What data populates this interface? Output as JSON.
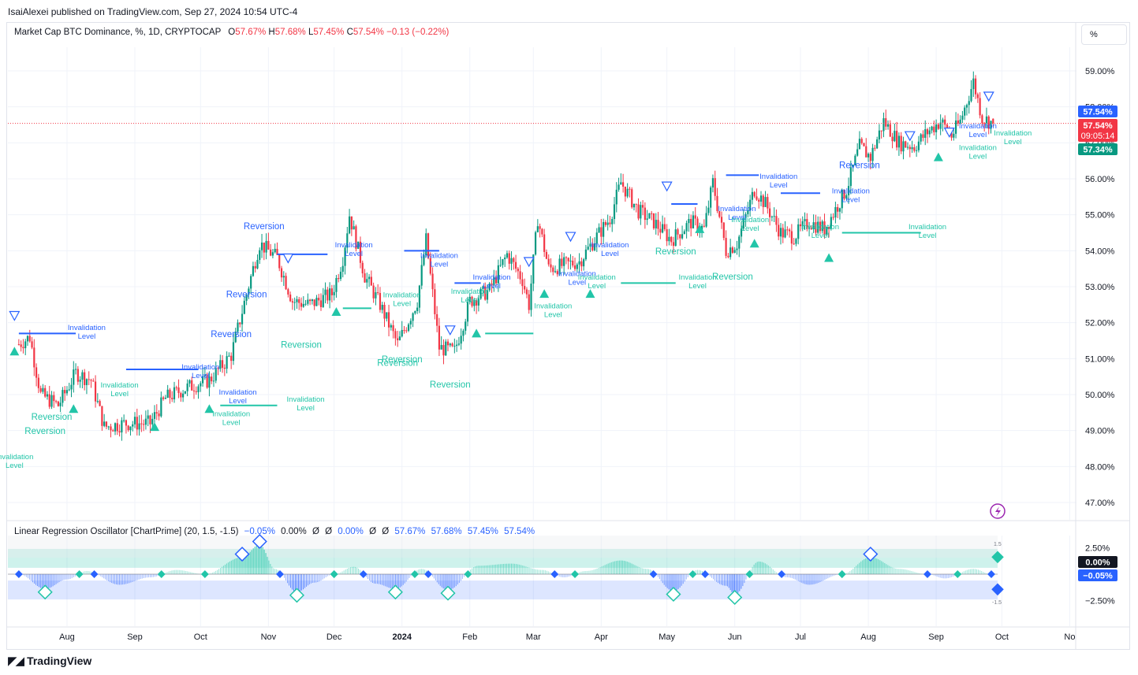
{
  "header": {
    "publisher": "IsaiAlexei published on TradingView.com, Sep 27, 2024 10:54 UTC-4"
  },
  "main_legend": {
    "title": "Market Cap BTC Dominance, %, 1D, CRYPTOCAP",
    "o_label": "O",
    "o_value": "57.67%",
    "h_label": "H",
    "h_value": "57.68%",
    "l_label": "L",
    "l_value": "57.45%",
    "c_label": "C",
    "c_value": "57.54%",
    "change": "−0.13 (−0.22%)"
  },
  "scale_button": "%",
  "oscillator_legend": {
    "title": "Linear Regression Oscillator [ChartPrime] (20, 1.5, -1.5)",
    "v1": "−0.05%",
    "v2": "0.00%",
    "v3": "Ø",
    "v4": "Ø",
    "v5": "0.00%",
    "v6": "Ø",
    "v7": "Ø",
    "v8": "57.67%",
    "v9": "57.68%",
    "v10": "57.45%",
    "v11": "57.54%"
  },
  "price_badges": {
    "current": "57.54%",
    "last": "57.54%",
    "countdown": "09:05:14",
    "lower": "57.34%"
  },
  "osc_badges": {
    "zero": "0.00%",
    "value": "−0.05%",
    "upper_level": "1.5",
    "lower_level": "-1.5"
  },
  "brand": "TradingView",
  "colors": {
    "up": "#089981",
    "down": "#f23645",
    "teal": "#22c5a8",
    "blue": "#2962ff",
    "text": "#131722"
  },
  "chart_data": [
    {
      "type": "candlestick",
      "title": "Market Cap BTC Dominance, %, 1D, CRYPTOCAP",
      "x_ticks": [
        "Aug",
        "Sep",
        "Oct",
        "Nov",
        "Dec",
        "2024",
        "Feb",
        "Mar",
        "Apr",
        "May",
        "Jun",
        "Jul",
        "Aug",
        "Sep",
        "Oct",
        "No"
      ],
      "y_ticks": [
        "59.00%",
        "58.00%",
        "57.00%",
        "56.00%",
        "55.00%",
        "54.00%",
        "53.00%",
        "52.00%",
        "51.00%",
        "50.00%",
        "49.00%",
        "48.00%",
        "47.00%"
      ],
      "ylim": [
        46.6,
        59.6
      ],
      "approx_close_path": [
        {
          "date": "2023-07-10",
          "close": 51.4
        },
        {
          "date": "2023-07-15",
          "close": 51.6
        },
        {
          "date": "2023-07-20",
          "close": 50.0
        },
        {
          "date": "2023-07-28",
          "close": 49.7
        },
        {
          "date": "2023-08-05",
          "close": 50.6
        },
        {
          "date": "2023-08-12",
          "close": 50.4
        },
        {
          "date": "2023-08-18",
          "close": 49.1
        },
        {
          "date": "2023-08-28",
          "close": 49.2
        },
        {
          "date": "2023-09-08",
          "close": 49.2
        },
        {
          "date": "2023-09-15",
          "close": 49.9
        },
        {
          "date": "2023-09-25",
          "close": 50.2
        },
        {
          "date": "2023-10-05",
          "close": 50.4
        },
        {
          "date": "2023-10-15",
          "close": 51.1
        },
        {
          "date": "2023-10-22",
          "close": 52.8
        },
        {
          "date": "2023-10-28",
          "close": 54.2
        },
        {
          "date": "2023-11-05",
          "close": 53.8
        },
        {
          "date": "2023-11-12",
          "close": 52.6
        },
        {
          "date": "2023-11-20",
          "close": 52.5
        },
        {
          "date": "2023-11-30",
          "close": 52.8
        },
        {
          "date": "2023-12-05",
          "close": 53.8
        },
        {
          "date": "2023-12-08",
          "close": 55.0
        },
        {
          "date": "2023-12-15",
          "close": 53.3
        },
        {
          "date": "2023-12-22",
          "close": 52.5
        },
        {
          "date": "2023-12-30",
          "close": 51.4
        },
        {
          "date": "2024-01-08",
          "close": 52.6
        },
        {
          "date": "2024-01-12",
          "close": 54.3
        },
        {
          "date": "2024-01-18",
          "close": 51.3
        },
        {
          "date": "2024-01-25",
          "close": 51.2
        },
        {
          "date": "2024-02-01",
          "close": 52.6
        },
        {
          "date": "2024-02-10",
          "close": 52.9
        },
        {
          "date": "2024-02-18",
          "close": 53.9
        },
        {
          "date": "2024-02-25",
          "close": 53.2
        },
        {
          "date": "2024-02-28",
          "close": 52.5
        },
        {
          "date": "2024-03-03",
          "close": 54.9
        },
        {
          "date": "2024-03-08",
          "close": 53.5
        },
        {
          "date": "2024-03-15",
          "close": 53.6
        },
        {
          "date": "2024-03-22",
          "close": 53.7
        },
        {
          "date": "2024-03-30",
          "close": 54.4
        },
        {
          "date": "2024-04-05",
          "close": 54.9
        },
        {
          "date": "2024-04-10",
          "close": 55.9
        },
        {
          "date": "2024-04-18",
          "close": 55.1
        },
        {
          "date": "2024-04-25",
          "close": 54.8
        },
        {
          "date": "2024-05-03",
          "close": 54.3
        },
        {
          "date": "2024-05-12",
          "close": 54.8
        },
        {
          "date": "2024-05-18",
          "close": 54.6
        },
        {
          "date": "2024-05-22",
          "close": 55.9
        },
        {
          "date": "2024-05-28",
          "close": 54.0
        },
        {
          "date": "2024-06-02",
          "close": 54.2
        },
        {
          "date": "2024-06-10",
          "close": 55.7
        },
        {
          "date": "2024-06-15",
          "close": 55.3
        },
        {
          "date": "2024-06-22",
          "close": 54.5
        },
        {
          "date": "2024-06-28",
          "close": 54.4
        },
        {
          "date": "2024-07-05",
          "close": 54.8
        },
        {
          "date": "2024-07-12",
          "close": 54.6
        },
        {
          "date": "2024-07-22",
          "close": 55.7
        },
        {
          "date": "2024-07-28",
          "close": 56.9
        },
        {
          "date": "2024-08-02",
          "close": 56.6
        },
        {
          "date": "2024-08-08",
          "close": 57.6
        },
        {
          "date": "2024-08-15",
          "close": 57.0
        },
        {
          "date": "2024-08-22",
          "close": 56.9
        },
        {
          "date": "2024-08-28",
          "close": 57.3
        },
        {
          "date": "2024-09-03",
          "close": 57.6
        },
        {
          "date": "2024-09-08",
          "close": 57.2
        },
        {
          "date": "2024-09-12",
          "close": 57.6
        },
        {
          "date": "2024-09-18",
          "close": 58.7
        },
        {
          "date": "2024-09-22",
          "close": 57.7
        },
        {
          "date": "2024-09-27",
          "close": 57.54
        }
      ],
      "last": {
        "open": 57.67,
        "high": 57.68,
        "low": 57.45,
        "close": 57.54
      }
    },
    {
      "type": "area",
      "title": "Linear Regression Oscillator [ChartPrime] (20, 1.5, -1.5)",
      "y_ticks": [
        "2.50%",
        "0.00%",
        "−2.50%"
      ],
      "levels": {
        "upper": 1.5,
        "lower": -1.5
      },
      "ylim": [
        -3.2,
        3.2
      ],
      "approx_path": [
        {
          "date": "2023-07-10",
          "value": 0.0
        },
        {
          "date": "2023-07-22",
          "value": -1.4
        },
        {
          "date": "2023-08-01",
          "value": -0.5
        },
        {
          "date": "2023-08-10",
          "value": 0.3
        },
        {
          "date": "2023-08-25",
          "value": -1.0
        },
        {
          "date": "2023-09-08",
          "value": -0.3
        },
        {
          "date": "2023-09-20",
          "value": 0.4
        },
        {
          "date": "2023-10-03",
          "value": 0.0
        },
        {
          "date": "2023-10-20",
          "value": 1.6
        },
        {
          "date": "2023-10-28",
          "value": 2.8
        },
        {
          "date": "2023-11-04",
          "value": 0.5
        },
        {
          "date": "2023-11-14",
          "value": -1.7
        },
        {
          "date": "2023-11-22",
          "value": -0.8
        },
        {
          "date": "2023-12-01",
          "value": 0.0
        },
        {
          "date": "2023-12-10",
          "value": 0.7
        },
        {
          "date": "2023-12-20",
          "value": -0.9
        },
        {
          "date": "2023-12-29",
          "value": -1.4
        },
        {
          "date": "2024-01-10",
          "value": 0.5
        },
        {
          "date": "2024-01-22",
          "value": -1.5
        },
        {
          "date": "2024-02-05",
          "value": 0.8
        },
        {
          "date": "2024-02-20",
          "value": 1.0
        },
        {
          "date": "2024-03-05",
          "value": 0.4
        },
        {
          "date": "2024-03-15",
          "value": -0.3
        },
        {
          "date": "2024-03-25",
          "value": 0.3
        },
        {
          "date": "2024-04-10",
          "value": 1.3
        },
        {
          "date": "2024-04-22",
          "value": 0.5
        },
        {
          "date": "2024-05-04",
          "value": -1.6
        },
        {
          "date": "2024-05-15",
          "value": 0.4
        },
        {
          "date": "2024-05-28",
          "value": -1.1
        },
        {
          "date": "2024-06-01",
          "value": -1.9
        },
        {
          "date": "2024-06-12",
          "value": 1.2
        },
        {
          "date": "2024-06-25",
          "value": -0.3
        },
        {
          "date": "2024-07-05",
          "value": -1.0
        },
        {
          "date": "2024-07-20",
          "value": 0.0
        },
        {
          "date": "2024-08-02",
          "value": 1.6
        },
        {
          "date": "2024-08-15",
          "value": 0.5
        },
        {
          "date": "2024-08-28",
          "value": 0.0
        },
        {
          "date": "2024-09-05",
          "value": -0.4
        },
        {
          "date": "2024-09-18",
          "value": 0.5
        },
        {
          "date": "2024-09-27",
          "value": -0.05
        }
      ]
    }
  ],
  "annotations": {
    "reversion_labels": [
      "Reversion",
      "Reversion",
      "Reversion",
      "Reversion",
      "Reversion",
      "Reversion",
      "Reversion",
      "Reversion",
      "Reversion",
      "Reversion",
      "Reversion",
      "Reversion",
      "Reversion",
      "Reversion"
    ],
    "invalidation_line1": "Invalidation",
    "invalidation_line2": "Level"
  }
}
